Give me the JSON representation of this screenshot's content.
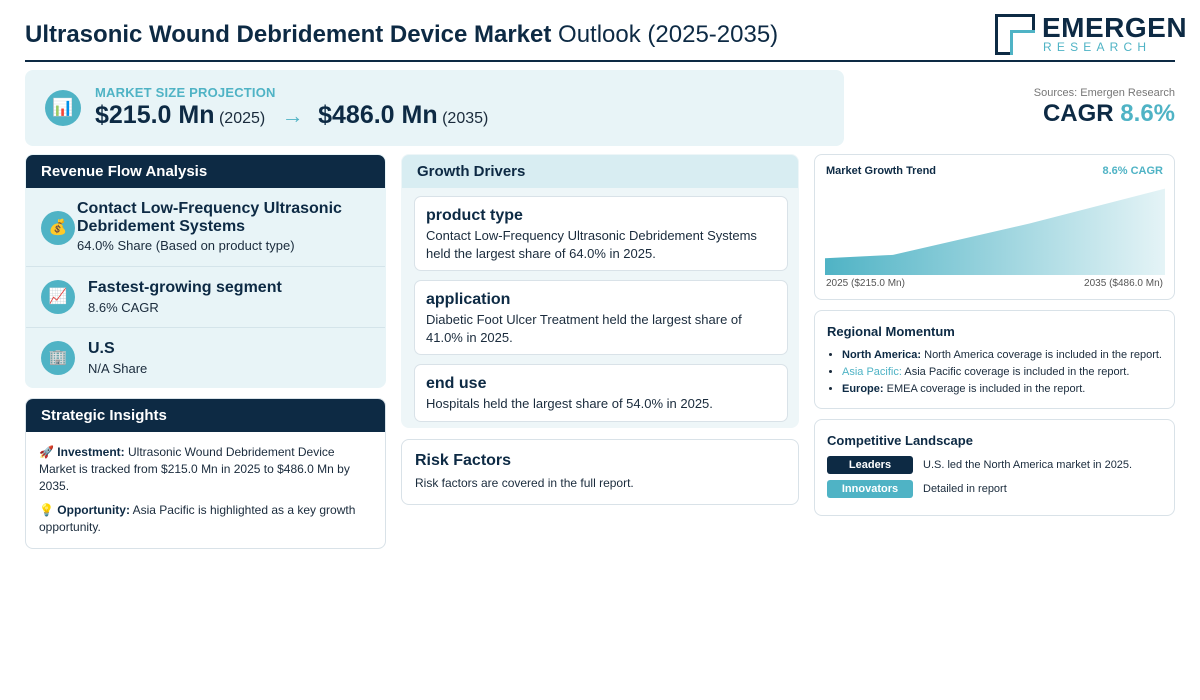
{
  "header": {
    "title_bold": "Ultrasonic Wound Debridement Device Market",
    "title_light": "Outlook (2025-2035)",
    "logo_word": "EMERGEN",
    "logo_sub": "RESEARCH"
  },
  "projection": {
    "label": "MARKET SIZE PROJECTION",
    "start_value": "$215.0 Mn",
    "start_year": "(2025)",
    "arrow": "→",
    "end_value": "$486.0 Mn",
    "end_year": "(2035)",
    "icon": "bar-chart-icon"
  },
  "summary": {
    "sources": "Sources: Emergen Research",
    "cagr_label": "CAGR",
    "cagr_value": "8.6%"
  },
  "revenue": {
    "title": "Revenue Flow Analysis",
    "rows": [
      {
        "icon": "money-bag-icon",
        "title": "Contact Low-Frequency Ultrasonic Debridement Systems",
        "sub": "64.0% Share (Based on product type)"
      },
      {
        "icon": "trend-up-icon",
        "title": "Fastest-growing segment",
        "sub": "8.6% CAGR"
      },
      {
        "icon": "building-icon",
        "title": "U.S",
        "sub": "N/A Share"
      }
    ]
  },
  "strategic": {
    "title": "Strategic Insights",
    "items": [
      {
        "icon": "rocket-icon",
        "label": "Investment:",
        "text": "Ultrasonic Wound Debridement Device Market is tracked from $215.0 Mn in 2025 to $486.0 Mn by 2035."
      },
      {
        "icon": "lightbulb-icon",
        "label": "Opportunity:",
        "text": "Asia Pacific is highlighted as a key growth opportunity."
      }
    ]
  },
  "drivers": {
    "title": "Growth Drivers",
    "items": [
      {
        "title": "product type",
        "text": "Contact Low-Frequency Ultrasonic Debridement Systems held the largest share of 64.0% in 2025."
      },
      {
        "title": "application",
        "text": "Diabetic Foot Ulcer Treatment held the largest share of 41.0% in 2025."
      },
      {
        "title": "end use",
        "text": "Hospitals held the largest share of 54.0% in 2025."
      }
    ]
  },
  "risk": {
    "title": "Risk Factors",
    "text": "Risk factors are covered in the full report."
  },
  "trend": {
    "title": "Market Growth Trend",
    "cagr": "8.6% CAGR",
    "start_label": "2025 ($215.0 Mn)",
    "end_label": "2035 ($486.0 Mn)"
  },
  "chart_data": {
    "type": "area",
    "x": [
      2025,
      2027,
      2031,
      2035
    ],
    "values": [
      215.0,
      228.0,
      350.0,
      486.0
    ],
    "ylim": [
      150,
      500
    ],
    "color": "#4fb3c5"
  },
  "regional": {
    "title": "Regional Momentum",
    "items": [
      {
        "name": "North America:",
        "text": "North America coverage is included in the report."
      },
      {
        "name": "Asia Pacific:",
        "text": "Asia Pacific coverage is included in the report."
      },
      {
        "name": "Europe:",
        "text": "EMEA coverage is included in the report."
      }
    ]
  },
  "competitive": {
    "title": "Competitive Landscape",
    "rows": [
      {
        "badge": "Leaders",
        "text": "U.S. led the North America market in 2025.",
        "color": "#0d2a44"
      },
      {
        "badge": "Innovators",
        "text": "Detailed in report",
        "color": "#4fb3c5"
      }
    ]
  },
  "colors": {
    "navy": "#0d2a44",
    "teal": "#4fb3c5",
    "panel": "#e8f4f7"
  }
}
